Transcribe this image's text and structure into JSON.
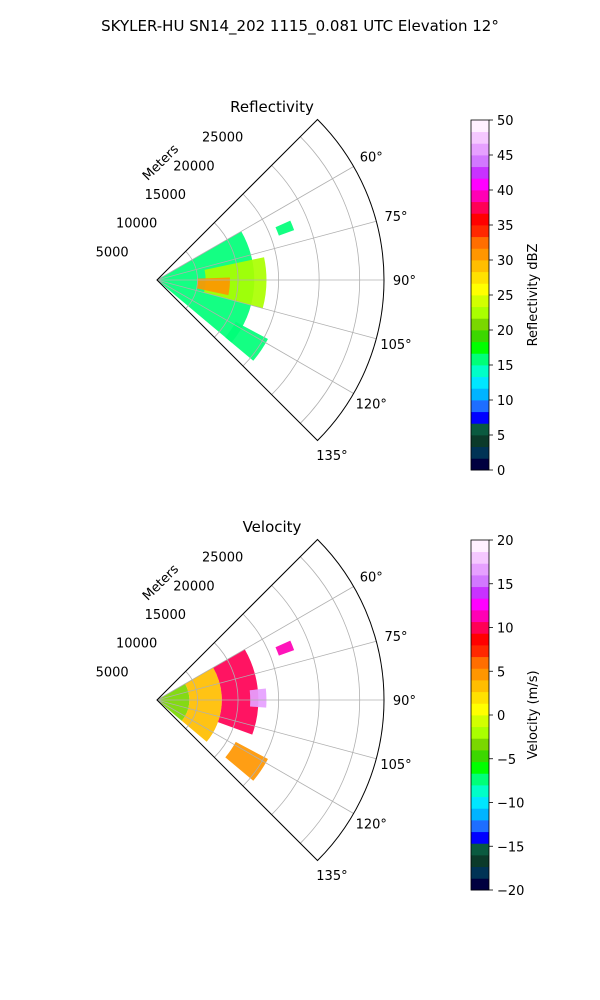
{
  "figure": {
    "suptitle": "SKYLER-HU  SN14_202  1115_0.081 UTC Elevation 12°"
  },
  "chart_data": [
    {
      "type": "heatmap",
      "subtype": "polar-sector (PPI)",
      "title": "Reflectivity",
      "radial_axis_label": "Meters",
      "radial_ticks": [
        5000,
        10000,
        15000,
        20000,
        25000
      ],
      "radial_tick_labels": [
        "5000",
        "10000",
        "15000",
        "20000",
        "25000"
      ],
      "r_max": 28000,
      "azimuth_range_deg": [
        45,
        135
      ],
      "azimuth_ticks_deg": [
        60,
        75,
        90,
        105,
        120,
        135
      ],
      "azimuth_tick_labels": [
        "60°",
        "75°",
        "90°",
        "105°",
        "120°",
        "135°"
      ],
      "grid": true,
      "colorbar": {
        "label": "Reflectivity dBZ",
        "min": 0,
        "max": 50,
        "ticks": [
          0,
          5,
          10,
          15,
          20,
          25,
          30,
          35,
          40,
          45,
          50
        ],
        "tick_labels": [
          "0",
          "5",
          "10",
          "15",
          "20",
          "25",
          "30",
          "35",
          "40",
          "45",
          "50"
        ],
        "colors": [
          "#00003f",
          "#003355",
          "#0b3a2a",
          "#0a5a40",
          "#0000ff",
          "#1e6eff",
          "#00b4ff",
          "#00e6ff",
          "#00ffc8",
          "#00ff78",
          "#00ff00",
          "#3cd700",
          "#7ad700",
          "#aaff00",
          "#d2ff00",
          "#ffff00",
          "#ffe100",
          "#ffbe00",
          "#ff9600",
          "#ff6e00",
          "#ff2800",
          "#ff0000",
          "#ff0055",
          "#ff00b4",
          "#ff00ff",
          "#c832ff",
          "#d278ff",
          "#e6a0ff",
          "#f5c8ff",
          "#fff0ff"
        ]
      },
      "echo_regions": [
        {
          "az_from": 60,
          "az_to": 130,
          "r_from": 0,
          "r_to": 12000,
          "value_dbz": 16
        },
        {
          "az_from": 78,
          "az_to": 105,
          "r_from": 6000,
          "r_to": 13500,
          "value_dbz": 22
        },
        {
          "az_from": 88,
          "az_to": 102,
          "r_from": 5000,
          "r_to": 9000,
          "value_dbz": 30
        },
        {
          "az_from": 118,
          "az_to": 130,
          "r_from": 11000,
          "r_to": 15500,
          "value_dbz": 16
        },
        {
          "az_from": 66,
          "az_to": 70,
          "r_from": 16000,
          "r_to": 18000,
          "value_dbz": 16
        }
      ]
    },
    {
      "type": "heatmap",
      "subtype": "polar-sector (PPI)",
      "title": "Velocity",
      "radial_axis_label": "Meters",
      "radial_ticks": [
        5000,
        10000,
        15000,
        20000,
        25000
      ],
      "radial_tick_labels": [
        "5000",
        "10000",
        "15000",
        "20000",
        "25000"
      ],
      "r_max": 28000,
      "azimuth_range_deg": [
        45,
        135
      ],
      "azimuth_ticks_deg": [
        60,
        75,
        90,
        105,
        120,
        135
      ],
      "azimuth_tick_labels": [
        "60°",
        "75°",
        "90°",
        "105°",
        "120°",
        "135°"
      ],
      "grid": true,
      "colorbar": {
        "label": "Velocity (m/s)",
        "min": -20,
        "max": 20,
        "ticks": [
          -20,
          -15,
          -10,
          -5,
          0,
          5,
          10,
          15,
          20
        ],
        "tick_labels": [
          "−20",
          "−15",
          "−10",
          "−5",
          "0",
          "5",
          "10",
          "15",
          "20"
        ],
        "colors": [
          "#00003f",
          "#003355",
          "#0b3a2a",
          "#0a5a40",
          "#0000ff",
          "#1e6eff",
          "#00b4ff",
          "#00e6ff",
          "#00ffc8",
          "#00ff78",
          "#00ff00",
          "#3cd700",
          "#7ad700",
          "#aaff00",
          "#d2ff00",
          "#ffff00",
          "#ffe100",
          "#ffbe00",
          "#ff9600",
          "#ff6e00",
          "#ff2800",
          "#ff0000",
          "#ff0055",
          "#ff00b4",
          "#ff00ff",
          "#c832ff",
          "#d278ff",
          "#e6a0ff",
          "#f5c8ff",
          "#fff0ff"
        ]
      },
      "echo_regions": [
        {
          "az_from": 60,
          "az_to": 130,
          "r_from": 0,
          "r_to": 4000,
          "value_ms": -3
        },
        {
          "az_from": 60,
          "az_to": 130,
          "r_from": 4000,
          "r_to": 8000,
          "value_ms": 3
        },
        {
          "az_from": 60,
          "az_to": 110,
          "r_from": 8000,
          "r_to": 12500,
          "value_ms": 10
        },
        {
          "az_from": 84,
          "az_to": 94,
          "r_from": 11500,
          "r_to": 13500,
          "value_ms": 17
        },
        {
          "az_from": 118,
          "az_to": 130,
          "r_from": 11000,
          "r_to": 15500,
          "value_ms": 5
        },
        {
          "az_from": 66,
          "az_to": 70,
          "r_from": 16000,
          "r_to": 18000,
          "value_ms": 11
        }
      ]
    }
  ]
}
